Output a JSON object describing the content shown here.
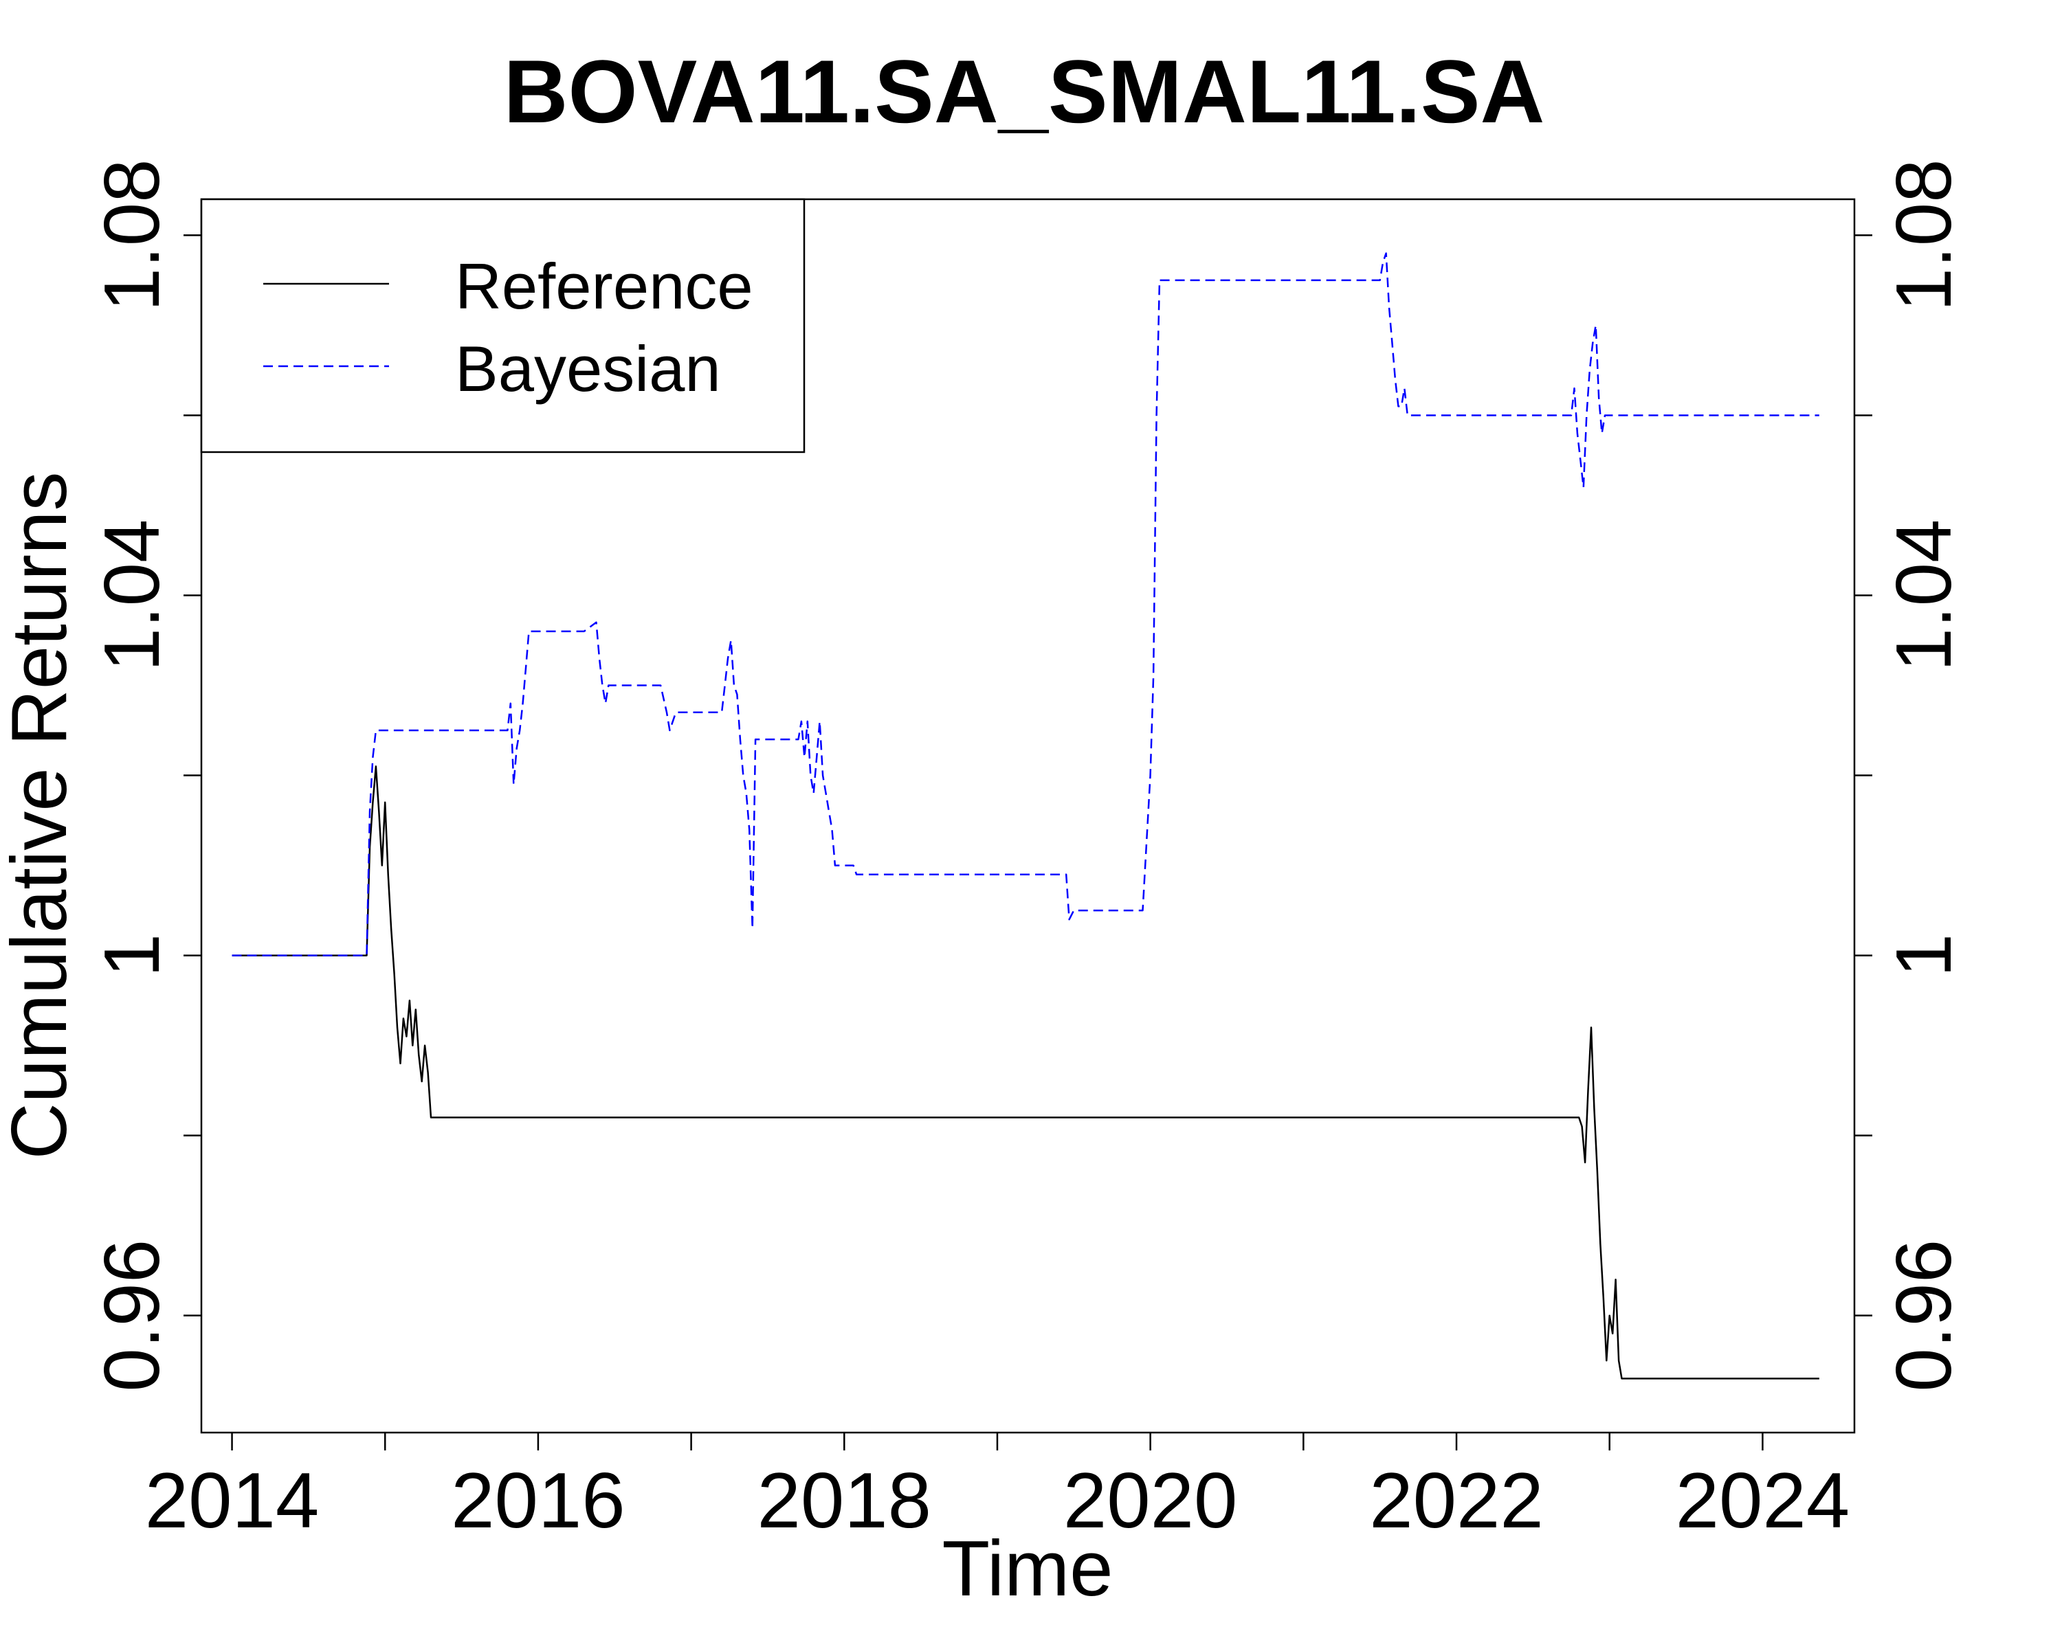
{
  "chart_data": {
    "type": "line",
    "title": "BOVA11.SA_SMAL11.SA",
    "xlabel": "Time",
    "ylabel": "Cumulative Returns",
    "xlim": [
      2013.8,
      2024.6
    ],
    "ylim": [
      0.947,
      1.084
    ],
    "x_ticks": [
      2014,
      2015,
      2016,
      2017,
      2018,
      2019,
      2020,
      2021,
      2022,
      2023,
      2024
    ],
    "x_tick_labels": [
      "2014",
      "2016",
      "2018",
      "2020",
      "2022",
      "2024"
    ],
    "x_tick_label_values": [
      2014,
      2016,
      2018,
      2020,
      2022,
      2024
    ],
    "y_ticks": [
      0.96,
      0.98,
      1.0,
      1.02,
      1.04,
      1.06,
      1.08
    ],
    "y_tick_labels": [
      "0.96",
      "1",
      "1.04",
      "1.08"
    ],
    "y_tick_label_values": [
      0.96,
      1.0,
      1.04,
      1.08
    ],
    "right_axis": true,
    "grid": false,
    "legend_position": "top-left",
    "series": [
      {
        "name": "Reference",
        "color": "#000000",
        "dash": "solid",
        "x": [
          2014.0,
          2014.88,
          2014.9,
          2014.92,
          2014.94,
          2014.96,
          2014.98,
          2015.0,
          2015.02,
          2015.04,
          2015.06,
          2015.08,
          2015.1,
          2015.12,
          2015.14,
          2015.16,
          2015.18,
          2015.2,
          2015.22,
          2015.24,
          2015.26,
          2015.28,
          2015.3,
          2015.32,
          2022.8,
          2022.82,
          2022.84,
          2022.86,
          2022.88,
          2022.9,
          2022.92,
          2022.94,
          2022.96,
          2022.98,
          2023.0,
          2023.02,
          2023.04,
          2023.06,
          2023.08,
          2024.37
        ],
        "y": [
          1.0,
          1.0,
          1.012,
          1.017,
          1.021,
          1.016,
          1.01,
          1.017,
          1.009,
          1.003,
          0.998,
          0.992,
          0.988,
          0.993,
          0.991,
          0.995,
          0.99,
          0.994,
          0.989,
          0.986,
          0.99,
          0.987,
          0.982,
          0.982,
          0.982,
          0.981,
          0.977,
          0.985,
          0.992,
          0.983,
          0.976,
          0.968,
          0.962,
          0.955,
          0.96,
          0.958,
          0.964,
          0.955,
          0.953,
          0.953
        ]
      },
      {
        "name": "Bayesian",
        "color": "#0000ff",
        "dash": "dashed",
        "x": [
          2014.0,
          2014.88,
          2014.9,
          2014.92,
          2014.94,
          2015.8,
          2015.82,
          2015.84,
          2015.86,
          2015.88,
          2015.9,
          2015.92,
          2015.94,
          2015.96,
          2016.0,
          2016.3,
          2016.38,
          2016.4,
          2016.42,
          2016.44,
          2016.46,
          2016.5,
          2016.8,
          2016.84,
          2016.86,
          2016.9,
          2017.2,
          2017.22,
          2017.24,
          2017.26,
          2017.28,
          2017.3,
          2017.32,
          2017.34,
          2017.36,
          2017.38,
          2017.4,
          2017.42,
          2017.44,
          2017.46,
          2017.48,
          2017.5,
          2017.52,
          2017.54,
          2017.7,
          2017.72,
          2017.74,
          2017.76,
          2017.78,
          2017.8,
          2017.82,
          2017.84,
          2017.86,
          2017.88,
          2017.9,
          2017.92,
          2017.94,
          2018.0,
          2018.04,
          2018.06,
          2018.08,
          2018.1,
          2019.4,
          2019.45,
          2019.47,
          2019.5,
          2019.9,
          2019.95,
          2020.0,
          2020.02,
          2020.04,
          2020.06,
          2020.08,
          2020.1,
          2021.5,
          2021.52,
          2021.54,
          2021.56,
          2021.58,
          2021.6,
          2021.62,
          2021.64,
          2021.66,
          2021.68,
          2021.7,
          2021.72,
          2022.75,
          2022.77,
          2022.79,
          2022.81,
          2022.83,
          2022.85,
          2022.87,
          2022.89,
          2022.91,
          2022.93,
          2022.95,
          2022.97,
          2022.99,
          2024.37
        ],
        "y": [
          1.0,
          1.0,
          1.016,
          1.022,
          1.025,
          1.025,
          1.028,
          1.019,
          1.023,
          1.025,
          1.028,
          1.032,
          1.036,
          1.036,
          1.036,
          1.036,
          1.037,
          1.033,
          1.03,
          1.028,
          1.03,
          1.03,
          1.03,
          1.027,
          1.025,
          1.027,
          1.027,
          1.03,
          1.033,
          1.035,
          1.03,
          1.029,
          1.024,
          1.02,
          1.018,
          1.014,
          1.003,
          1.024,
          1.024,
          1.024,
          1.024,
          1.024,
          1.024,
          1.024,
          1.024,
          1.026,
          1.022,
          1.026,
          1.02,
          1.018,
          1.022,
          1.026,
          1.02,
          1.018,
          1.016,
          1.014,
          1.01,
          1.01,
          1.01,
          1.01,
          1.009,
          1.009,
          1.009,
          1.009,
          1.004,
          1.005,
          1.005,
          1.005,
          1.02,
          1.031,
          1.06,
          1.075,
          1.075,
          1.075,
          1.075,
          1.077,
          1.078,
          1.072,
          1.068,
          1.064,
          1.061,
          1.061,
          1.063,
          1.06,
          1.06,
          1.06,
          1.06,
          1.063,
          1.058,
          1.055,
          1.052,
          1.06,
          1.065,
          1.068,
          1.07,
          1.062,
          1.058,
          1.06,
          1.06,
          1.06
        ]
      }
    ]
  }
}
